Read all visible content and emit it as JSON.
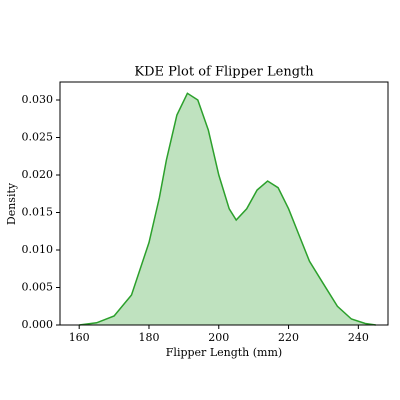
{
  "chart_data": {
    "type": "kde",
    "title": "KDE Plot of Flipper Length",
    "x_label": "Flipper Length (mm)",
    "y_label": "Density",
    "color": "#2ca02c",
    "x": [
      160,
      165,
      170,
      175,
      180,
      183,
      185,
      188,
      191,
      194,
      197,
      200,
      203,
      205,
      208,
      211,
      214,
      217,
      220,
      223,
      226,
      230,
      234,
      238,
      242,
      245
    ],
    "values": [
      0,
      0.0003,
      0.0012,
      0.004,
      0.011,
      0.017,
      0.022,
      0.028,
      0.0309,
      0.03,
      0.026,
      0.02,
      0.0155,
      0.014,
      0.0155,
      0.018,
      0.0192,
      0.0183,
      0.0155,
      0.012,
      0.0085,
      0.0055,
      0.0025,
      0.0008,
      0.0002,
      0
    ],
    "xlim": [
      154.5,
      248.5
    ],
    "ylim": [
      0,
      0.0324
    ],
    "xticks": [
      160,
      180,
      200,
      220,
      240
    ],
    "yticks": [
      {
        "value": 0,
        "label": "0.000"
      },
      {
        "value": 0.005,
        "label": "0.005"
      },
      {
        "value": 0.01,
        "label": "0.010"
      },
      {
        "value": 0.015,
        "label": "0.015"
      },
      {
        "value": 0.02,
        "label": "0.020"
      },
      {
        "value": 0.025,
        "label": "0.025"
      },
      {
        "value": 0.03,
        "label": "0.030"
      }
    ]
  }
}
